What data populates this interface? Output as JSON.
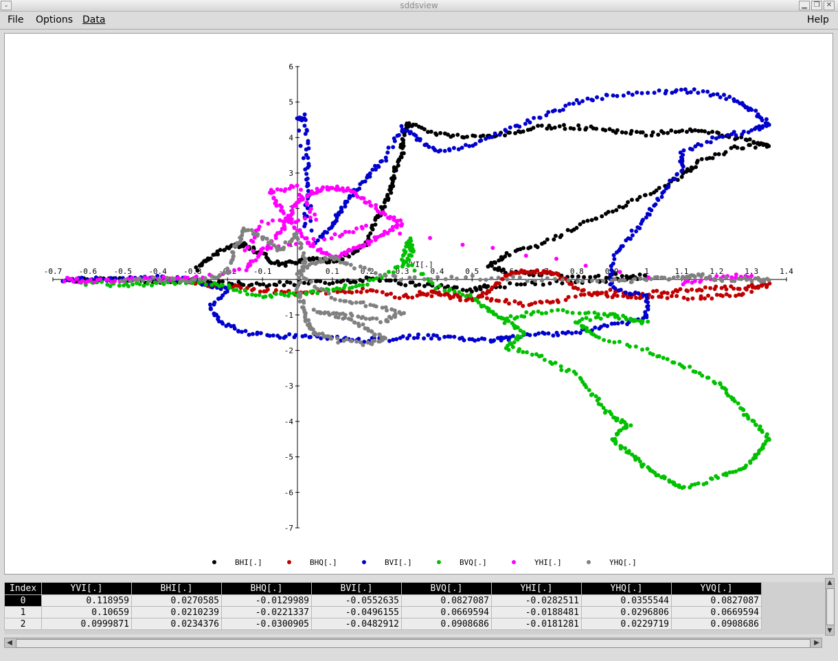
{
  "window": {
    "title": "sddsview",
    "menu_glyph": "⌄",
    "controls": {
      "minimize": "▁",
      "maximize": "❐",
      "close": "✕"
    }
  },
  "menu": {
    "file": "File",
    "options": "Options",
    "data": "Data",
    "help": "Help"
  },
  "chart_data": {
    "type": "scatter",
    "title": "",
    "xlabel": "",
    "ylabel": "YVI[.]",
    "xlim": [
      -0.7,
      1.4
    ],
    "ylim": [
      -7,
      6
    ],
    "grid": false,
    "axes_style": "crossed at origin",
    "xticks": [
      -0.7,
      -0.6,
      -0.5,
      -0.4,
      -0.3,
      -0.2,
      -0.1,
      0,
      0.1,
      0.2,
      0.3,
      0.4,
      0.5,
      0.6,
      0.7,
      0.8,
      0.9,
      1,
      1.1,
      1.2,
      1.3,
      1.4
    ],
    "xtick_labels": [
      "-0.7",
      "-0.6",
      "-0.5",
      "-0.4",
      "-0.3",
      "-0.2",
      "-0.1",
      "",
      "0.1",
      "0.2",
      "0.3",
      "0.4",
      "0.5",
      "0.6",
      "0.7",
      "0.8",
      "0.9",
      "1",
      "1.1",
      "1.2",
      "1.3",
      "1.4"
    ],
    "yticks": [
      -7,
      -6,
      -5,
      -4,
      -3,
      -2,
      -1,
      0,
      1,
      2,
      3,
      4,
      5,
      6
    ],
    "legend_position": "bottom",
    "series": [
      {
        "name": "BHI[.]",
        "color": "#000000",
        "points": [
          [
            -0.29,
            0.3
          ],
          [
            -0.25,
            0.6
          ],
          [
            -0.2,
            0.9
          ],
          [
            -0.15,
            1.0
          ],
          [
            -0.1,
            0.7
          ],
          [
            -0.05,
            0.4
          ],
          [
            0.0,
            0.5
          ],
          [
            0.05,
            0.6
          ],
          [
            0.1,
            0.5
          ],
          [
            0.15,
            0.7
          ],
          [
            0.2,
            1.0
          ],
          [
            0.22,
            1.6
          ],
          [
            0.25,
            2.1
          ],
          [
            0.27,
            2.6
          ],
          [
            0.28,
            3.1
          ],
          [
            0.3,
            3.5
          ],
          [
            0.3,
            4.0
          ],
          [
            0.32,
            4.4
          ],
          [
            0.4,
            4.1
          ],
          [
            0.5,
            4.0
          ],
          [
            0.6,
            4.1
          ],
          [
            0.7,
            4.3
          ],
          [
            0.8,
            4.3
          ],
          [
            0.9,
            4.2
          ],
          [
            1.0,
            4.1
          ],
          [
            1.1,
            4.2
          ],
          [
            1.2,
            4.1
          ],
          [
            1.3,
            3.9
          ],
          [
            1.35,
            3.8
          ],
          [
            1.25,
            3.7
          ],
          [
            1.15,
            3.3
          ],
          [
            1.1,
            2.9
          ],
          [
            1.0,
            2.4
          ],
          [
            0.9,
            1.9
          ],
          [
            0.8,
            1.5
          ],
          [
            0.7,
            1.0
          ],
          [
            0.6,
            0.7
          ],
          [
            0.55,
            0.4
          ],
          [
            0.6,
            0.2
          ],
          [
            0.7,
            0.15
          ],
          [
            0.85,
            0.1
          ],
          [
            1.0,
            0.1
          ],
          [
            0.9,
            0.0
          ],
          [
            0.7,
            -0.1
          ],
          [
            0.55,
            -0.2
          ],
          [
            0.5,
            -0.3
          ],
          [
            0.4,
            -0.2
          ],
          [
            0.3,
            -0.1
          ],
          [
            0.2,
            0.0
          ],
          [
            0.1,
            -0.1
          ],
          [
            0.0,
            -0.1
          ],
          [
            -0.1,
            -0.15
          ],
          [
            -0.2,
            -0.1
          ],
          [
            -0.3,
            -0.05
          ],
          [
            -0.4,
            -0.05
          ],
          [
            -0.5,
            -0.02
          ],
          [
            -0.6,
            0.0
          ],
          [
            -0.67,
            -0.05
          ]
        ]
      },
      {
        "name": "BHQ[.]",
        "color": "#c00000",
        "points": [
          [
            -0.3,
            -0.1
          ],
          [
            -0.2,
            -0.2
          ],
          [
            -0.1,
            -0.3
          ],
          [
            0.0,
            -0.4
          ],
          [
            0.1,
            -0.35
          ],
          [
            0.2,
            -0.3
          ],
          [
            0.3,
            -0.5
          ],
          [
            0.4,
            -0.4
          ],
          [
            0.5,
            -0.6
          ],
          [
            0.55,
            -0.3
          ],
          [
            0.6,
            0.1
          ],
          [
            0.65,
            0.25
          ],
          [
            0.7,
            0.2
          ],
          [
            0.75,
            0.1
          ],
          [
            0.8,
            -0.3
          ],
          [
            0.9,
            -0.5
          ],
          [
            1.0,
            -0.4
          ],
          [
            1.1,
            -0.3
          ],
          [
            1.2,
            -0.25
          ],
          [
            1.3,
            -0.2
          ],
          [
            1.35,
            -0.15
          ],
          [
            1.25,
            -0.45
          ],
          [
            1.15,
            -0.5
          ],
          [
            1.0,
            -0.55
          ],
          [
            0.9,
            -0.3
          ],
          [
            0.75,
            -0.6
          ],
          [
            0.65,
            -0.7
          ],
          [
            0.55,
            -0.55
          ],
          [
            0.45,
            -0.45
          ],
          [
            0.35,
            -0.35
          ]
        ]
      },
      {
        "name": "BVI[.]",
        "color": "#0000cc",
        "points": [
          [
            -0.67,
            0.0
          ],
          [
            -0.6,
            0.0
          ],
          [
            -0.5,
            0.0
          ],
          [
            -0.4,
            0.05
          ],
          [
            -0.3,
            0.0
          ],
          [
            -0.2,
            -0.3
          ],
          [
            -0.25,
            -0.8
          ],
          [
            -0.22,
            -1.2
          ],
          [
            -0.15,
            -1.5
          ],
          [
            -0.05,
            -1.6
          ],
          [
            0.05,
            -1.6
          ],
          [
            0.15,
            -1.7
          ],
          [
            0.25,
            -1.7
          ],
          [
            0.35,
            -1.6
          ],
          [
            0.45,
            -1.65
          ],
          [
            0.55,
            -1.7
          ],
          [
            0.6,
            -1.65
          ],
          [
            0.7,
            -1.55
          ],
          [
            0.8,
            -1.5
          ],
          [
            0.9,
            -1.3
          ],
          [
            1.0,
            -1.1
          ],
          [
            1.0,
            -0.5
          ],
          [
            0.9,
            -0.2
          ],
          [
            0.9,
            0.5
          ],
          [
            0.95,
            1.2
          ],
          [
            1.0,
            1.8
          ],
          [
            1.05,
            2.5
          ],
          [
            1.1,
            3.1
          ],
          [
            1.1,
            3.6
          ],
          [
            1.2,
            4.0
          ],
          [
            1.3,
            4.2
          ],
          [
            1.35,
            4.4
          ],
          [
            1.3,
            4.8
          ],
          [
            1.25,
            5.1
          ],
          [
            1.15,
            5.3
          ],
          [
            1.05,
            5.3
          ],
          [
            0.9,
            5.2
          ],
          [
            0.8,
            5.0
          ],
          [
            0.7,
            4.6
          ],
          [
            0.6,
            4.2
          ],
          [
            0.5,
            3.8
          ],
          [
            0.4,
            3.6
          ],
          [
            0.35,
            3.9
          ],
          [
            0.3,
            4.3
          ],
          [
            0.25,
            3.4
          ],
          [
            0.2,
            2.9
          ],
          [
            0.15,
            2.3
          ],
          [
            0.12,
            1.9
          ],
          [
            0.1,
            1.5
          ],
          [
            0.05,
            1.0
          ],
          [
            0.0,
            4.5
          ],
          [
            0.02,
            4.6
          ],
          [
            0.03,
            3.5
          ],
          [
            0.03,
            2.5
          ],
          [
            0.02,
            1.5
          ]
        ]
      },
      {
        "name": "BVQ[.]",
        "color": "#00c000",
        "points": [
          [
            -0.62,
            -0.1
          ],
          [
            -0.5,
            -0.15
          ],
          [
            -0.4,
            -0.1
          ],
          [
            -0.3,
            -0.05
          ],
          [
            -0.2,
            -0.2
          ],
          [
            -0.1,
            -0.5
          ],
          [
            0.0,
            -0.4
          ],
          [
            0.1,
            -0.3
          ],
          [
            0.2,
            -0.1
          ],
          [
            0.3,
            0.4
          ],
          [
            0.33,
            0.8
          ],
          [
            0.32,
            1.1
          ],
          [
            0.3,
            0.6
          ],
          [
            0.4,
            -0.2
          ],
          [
            0.5,
            -0.5
          ],
          [
            0.55,
            -0.9
          ],
          [
            0.6,
            -1.2
          ],
          [
            0.65,
            -1.5
          ],
          [
            0.6,
            -1.9
          ],
          [
            0.7,
            -2.2
          ],
          [
            0.8,
            -2.7
          ],
          [
            0.85,
            -3.3
          ],
          [
            0.9,
            -3.9
          ],
          [
            0.95,
            -4.1
          ],
          [
            0.9,
            -4.5
          ],
          [
            0.95,
            -4.9
          ],
          [
            1.0,
            -5.3
          ],
          [
            1.05,
            -5.6
          ],
          [
            1.1,
            -5.9
          ],
          [
            1.2,
            -5.6
          ],
          [
            1.28,
            -5.3
          ],
          [
            1.32,
            -4.9
          ],
          [
            1.35,
            -4.5
          ],
          [
            1.3,
            -4.0
          ],
          [
            1.25,
            -3.4
          ],
          [
            1.2,
            -2.9
          ],
          [
            1.1,
            -2.4
          ],
          [
            1.0,
            -2.0
          ],
          [
            0.85,
            -1.6
          ],
          [
            0.8,
            -1.2
          ],
          [
            0.9,
            -1.0
          ],
          [
            1.0,
            -1.2
          ],
          [
            0.85,
            -0.9
          ],
          [
            0.7,
            -0.9
          ],
          [
            0.6,
            -1.1
          ]
        ]
      },
      {
        "name": "YHI[.]",
        "color": "#ff00ff",
        "points": [
          [
            -0.67,
            0.0
          ],
          [
            -0.6,
            -0.05
          ],
          [
            -0.5,
            0.0
          ],
          [
            -0.4,
            0.05
          ],
          [
            -0.3,
            0.0
          ],
          [
            -0.15,
            0.3
          ],
          [
            -0.1,
            0.8
          ],
          [
            -0.05,
            1.3
          ],
          [
            -0.02,
            1.8
          ],
          [
            0.0,
            2.2
          ],
          [
            0.05,
            2.5
          ],
          [
            0.1,
            2.6
          ],
          [
            0.15,
            2.5
          ],
          [
            0.2,
            2.2
          ],
          [
            0.25,
            1.8
          ],
          [
            0.3,
            1.6
          ],
          [
            0.25,
            1.3
          ],
          [
            0.2,
            1.0
          ],
          [
            0.15,
            0.8
          ],
          [
            0.1,
            0.6
          ],
          [
            0.05,
            0.9
          ],
          [
            0.0,
            1.4
          ],
          [
            -0.05,
            2.0
          ],
          [
            -0.08,
            2.5
          ],
          [
            0.0,
            2.6
          ],
          [
            0.05,
            1.7
          ],
          [
            -0.1,
            1.6
          ],
          [
            -0.15,
            0.8
          ],
          [
            0.1,
            1.2
          ],
          [
            0.2,
            1.5
          ],
          [
            1.1,
            -0.1
          ],
          [
            1.2,
            0.05
          ],
          [
            1.3,
            0.1
          ]
        ]
      },
      {
        "name": "YHQ[.]",
        "color": "#808080",
        "points": [
          [
            -0.5,
            -0.05
          ],
          [
            -0.4,
            0.0
          ],
          [
            -0.3,
            -0.05
          ],
          [
            -0.2,
            0.2
          ],
          [
            -0.18,
            0.9
          ],
          [
            -0.15,
            1.4
          ],
          [
            -0.1,
            1.2
          ],
          [
            -0.05,
            0.8
          ],
          [
            0.0,
            1.3
          ],
          [
            0.02,
            0.5
          ],
          [
            0.0,
            -0.3
          ],
          [
            0.02,
            -0.8
          ],
          [
            0.03,
            -1.3
          ],
          [
            0.05,
            -1.5
          ],
          [
            0.1,
            -1.7
          ],
          [
            0.2,
            -1.8
          ],
          [
            0.25,
            -1.7
          ],
          [
            0.2,
            -1.4
          ],
          [
            0.15,
            -1.1
          ],
          [
            0.05,
            -0.9
          ],
          [
            0.15,
            -1.0
          ],
          [
            0.25,
            -1.2
          ],
          [
            0.3,
            -0.9
          ],
          [
            0.2,
            -0.7
          ],
          [
            0.1,
            -0.5
          ],
          [
            0.0,
            0.2
          ],
          [
            0.05,
            0.5
          ],
          [
            0.1,
            0.6
          ],
          [
            0.15,
            0.4
          ],
          [
            0.3,
            0.0
          ],
          [
            0.5,
            0.05
          ],
          [
            0.7,
            0.0
          ],
          [
            0.9,
            -0.05
          ],
          [
            1.0,
            0.0
          ],
          [
            1.1,
            0.05
          ],
          [
            1.15,
            0.1
          ],
          [
            1.2,
            0.0
          ],
          [
            1.3,
            0.0
          ],
          [
            1.35,
            -0.02
          ]
        ]
      }
    ]
  },
  "table": {
    "columns": [
      "Index",
      "YVI[.]",
      "BHI[.]",
      "BHQ[.]",
      "BVI[.]",
      "BVQ[.]",
      "YHI[.]",
      "YHQ[.]",
      "YVQ[.]"
    ],
    "rows": [
      [
        "0",
        "0.118959",
        "0.0270585",
        "-0.0129989",
        "-0.0552635",
        "0.0827087",
        "-0.0282511",
        "0.0355544",
        "0.0827087"
      ],
      [
        "1",
        "0.10659",
        "0.0210239",
        "-0.0221337",
        "-0.0496155",
        "0.0669594",
        "-0.0188481",
        "0.0296806",
        "0.0669594"
      ],
      [
        "2",
        "0.0999871",
        "0.0234376",
        "-0.0300905",
        "-0.0482912",
        "0.0908686",
        "-0.0181281",
        "0.0229719",
        "0.0908686"
      ]
    ],
    "selected_row": 0
  },
  "scrollbars": {
    "up": "▲",
    "down": "▼",
    "left": "◀",
    "right": "▶"
  }
}
